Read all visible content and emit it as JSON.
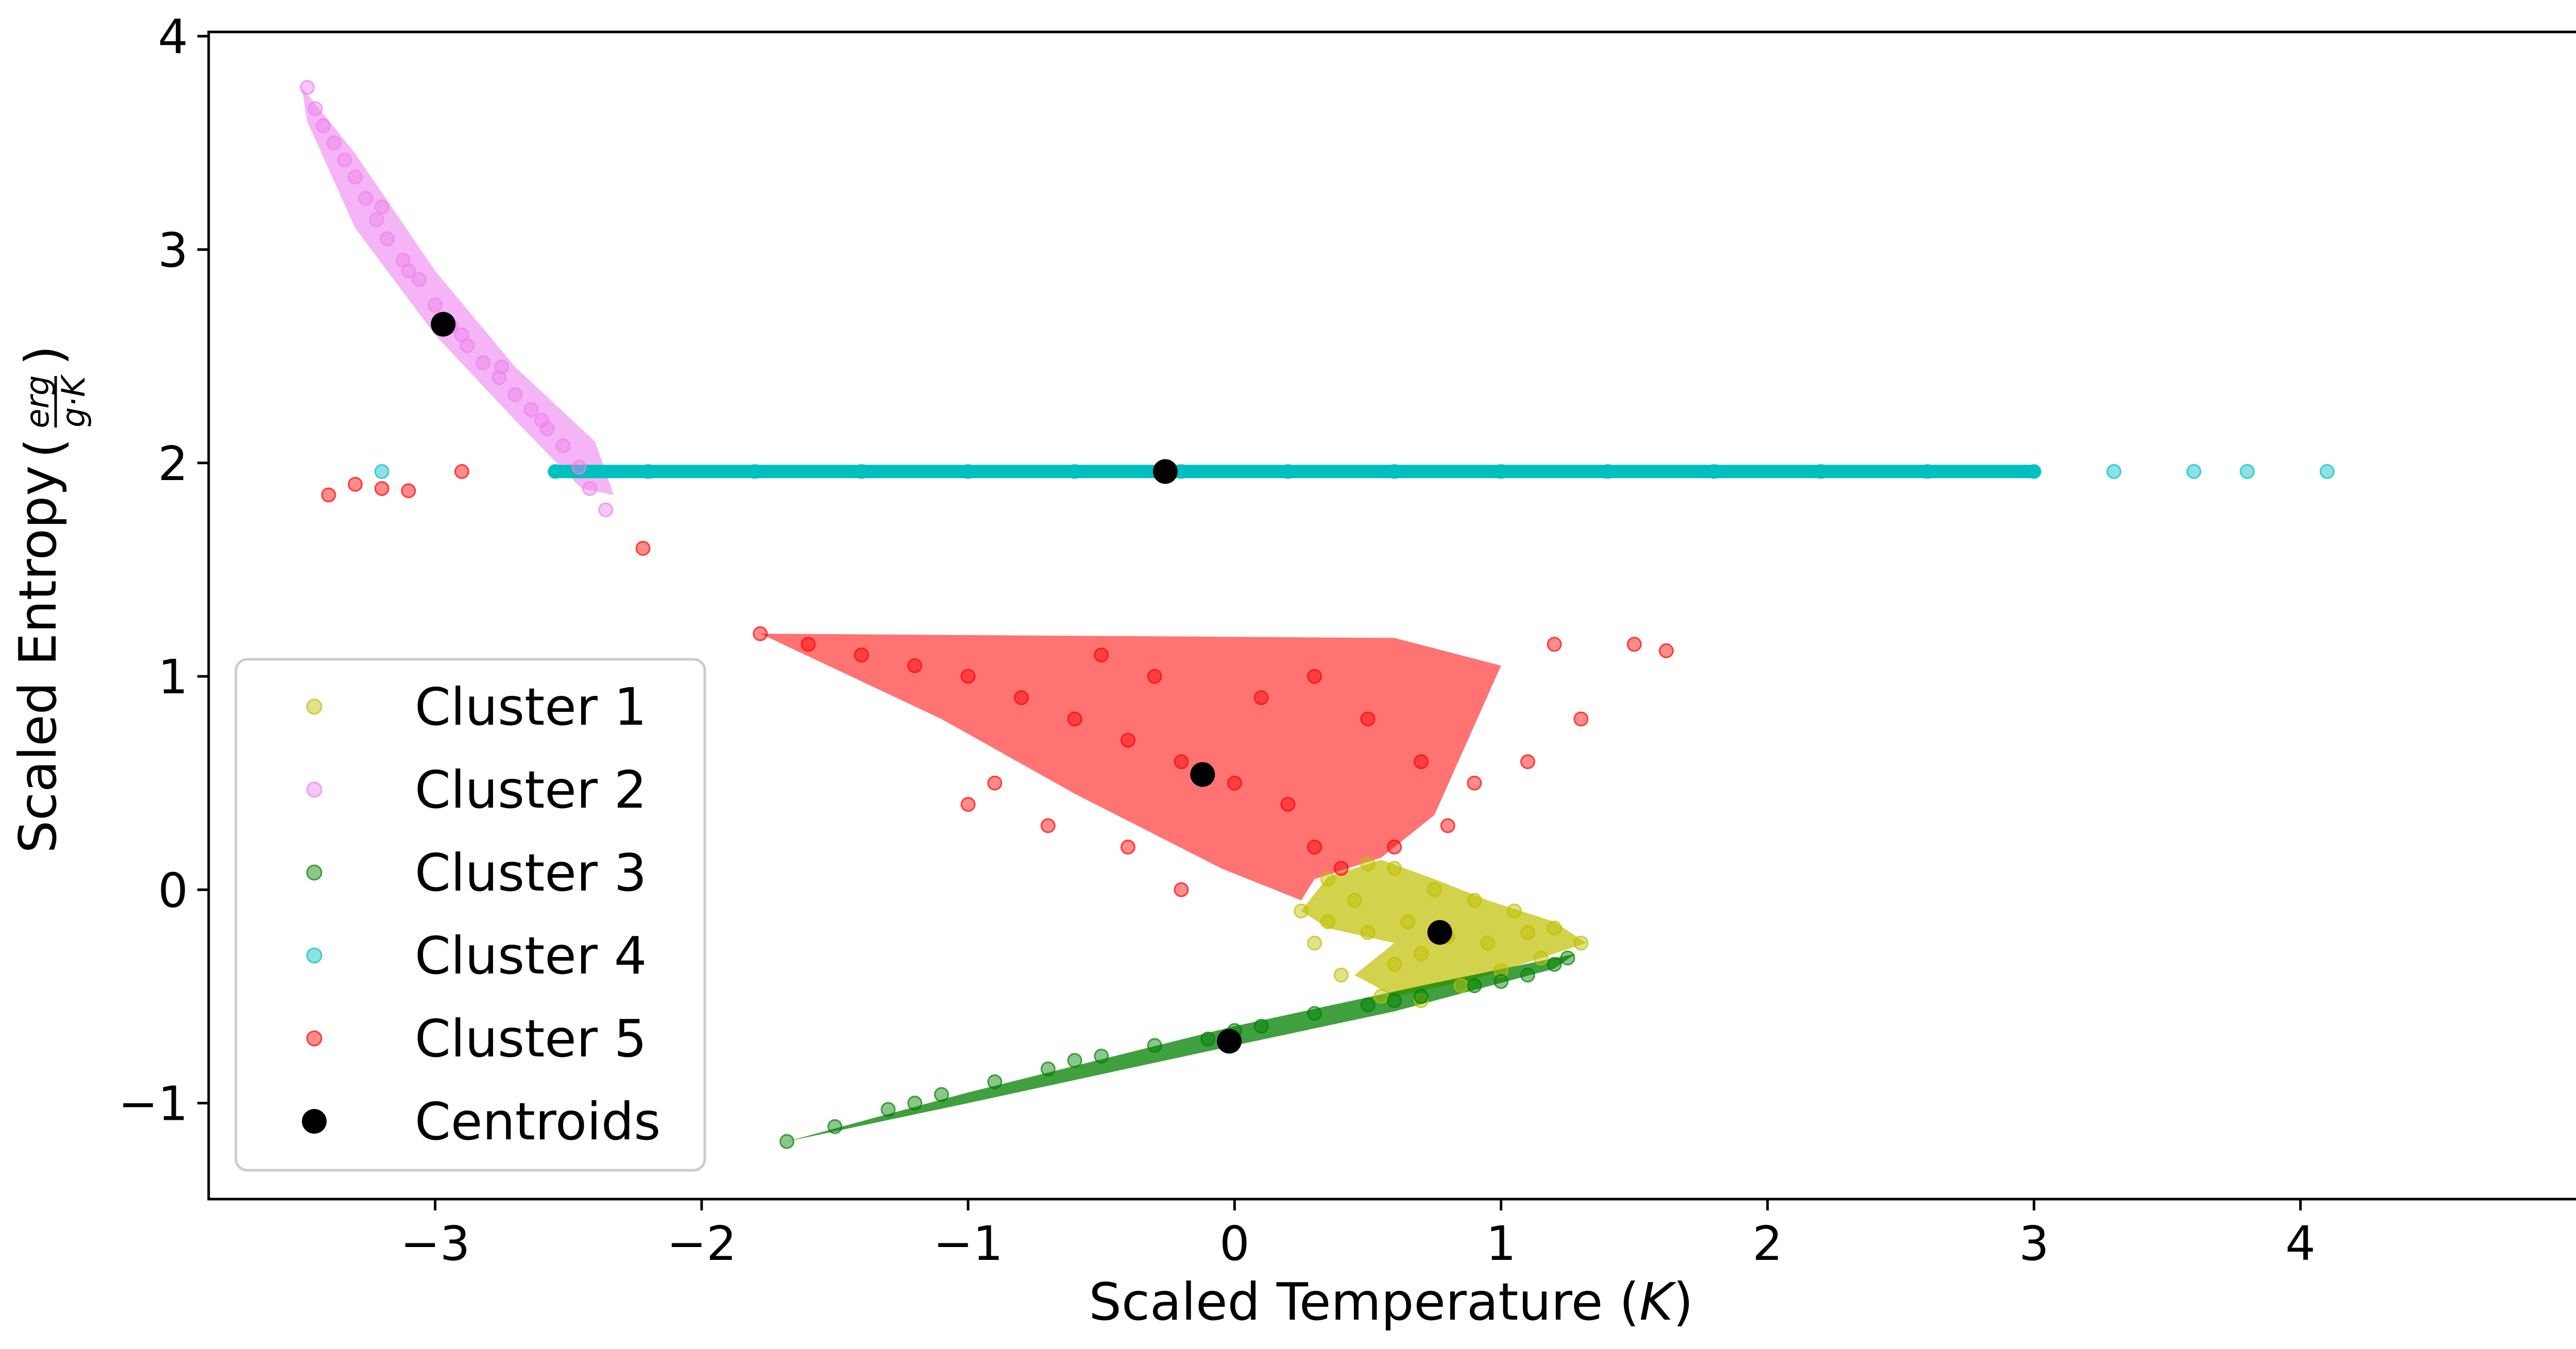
{
  "chart_data": {
    "type": "scatter",
    "title": "",
    "xlabel_prefix": "Scaled Temperature (",
    "xlabel_unit": "K",
    "xlabel_suffix": ")",
    "ylabel_prefix": "Scaled Entropy",
    "ylabel_frac_num": "erg",
    "ylabel_frac_den": "g·K",
    "xlim": [
      -3.85,
      5.15
    ],
    "ylim": [
      -1.45,
      4.02
    ],
    "x_ticks": [
      -3,
      -2,
      -1,
      0,
      1,
      2,
      3,
      4
    ],
    "x_tick_labels": [
      "−3",
      "−2",
      "−1",
      "0",
      "1",
      "2",
      "3",
      "4"
    ],
    "y_ticks": [
      -1,
      0,
      1,
      2,
      3,
      4
    ],
    "y_tick_labels": [
      "−1",
      "0",
      "1",
      "2",
      "3",
      "4"
    ],
    "legend_position": "lower-left",
    "series": [
      {
        "name": "Cluster 1",
        "color": "#bfbf00",
        "shape": "yellow blob between T≈0.25 and T≈1.3, S≈-0.55 to 0.15",
        "points": [
          [
            0.25,
            -0.1
          ],
          [
            0.35,
            0.05
          ],
          [
            0.5,
            0.12
          ],
          [
            0.6,
            0.1
          ],
          [
            0.75,
            0.0
          ],
          [
            0.9,
            -0.05
          ],
          [
            1.05,
            -0.1
          ],
          [
            1.2,
            -0.18
          ],
          [
            1.3,
            -0.25
          ],
          [
            1.15,
            -0.32
          ],
          [
            1.0,
            -0.38
          ],
          [
            0.85,
            -0.45
          ],
          [
            0.7,
            -0.52
          ],
          [
            0.55,
            -0.5
          ],
          [
            0.4,
            -0.4
          ],
          [
            0.3,
            -0.25
          ],
          [
            0.5,
            -0.2
          ],
          [
            0.65,
            -0.15
          ],
          [
            0.8,
            -0.22
          ],
          [
            0.95,
            -0.25
          ],
          [
            0.6,
            -0.35
          ],
          [
            0.45,
            -0.05
          ],
          [
            0.7,
            -0.3
          ],
          [
            1.1,
            -0.2
          ],
          [
            0.35,
            -0.15
          ]
        ]
      },
      {
        "name": "Cluster 2",
        "color": "#ee82ee",
        "points": [
          [
            -3.48,
            3.76
          ],
          [
            -3.45,
            3.66
          ],
          [
            -3.42,
            3.58
          ],
          [
            -3.38,
            3.5
          ],
          [
            -3.34,
            3.42
          ],
          [
            -3.3,
            3.34
          ],
          [
            -3.26,
            3.24
          ],
          [
            -3.22,
            3.14
          ],
          [
            -3.18,
            3.05
          ],
          [
            -3.12,
            2.95
          ],
          [
            -3.06,
            2.86
          ],
          [
            -3.0,
            2.74
          ],
          [
            -2.94,
            2.64
          ],
          [
            -2.88,
            2.55
          ],
          [
            -2.82,
            2.47
          ],
          [
            -2.76,
            2.4
          ],
          [
            -2.7,
            2.32
          ],
          [
            -2.64,
            2.25
          ],
          [
            -2.58,
            2.16
          ],
          [
            -2.52,
            2.08
          ],
          [
            -2.46,
            1.98
          ],
          [
            -2.42,
            1.88
          ],
          [
            -2.36,
            1.78
          ],
          [
            -3.2,
            3.2
          ],
          [
            -3.1,
            2.9
          ],
          [
            -2.9,
            2.6
          ],
          [
            -2.75,
            2.45
          ],
          [
            -2.6,
            2.2
          ]
        ]
      },
      {
        "name": "Cluster 3",
        "color": "#008000",
        "points": [
          [
            -1.68,
            -1.18
          ],
          [
            -1.5,
            -1.11
          ],
          [
            -1.3,
            -1.03
          ],
          [
            -1.1,
            -0.96
          ],
          [
            -0.9,
            -0.9
          ],
          [
            -0.7,
            -0.84
          ],
          [
            -0.5,
            -0.78
          ],
          [
            -0.3,
            -0.73
          ],
          [
            -0.1,
            -0.7
          ],
          [
            0.1,
            -0.64
          ],
          [
            0.3,
            -0.58
          ],
          [
            0.5,
            -0.54
          ],
          [
            0.7,
            -0.5
          ],
          [
            0.9,
            -0.45
          ],
          [
            1.1,
            -0.4
          ],
          [
            1.25,
            -0.32
          ],
          [
            -1.2,
            -1.0
          ],
          [
            -0.6,
            -0.8
          ],
          [
            0.0,
            -0.66
          ],
          [
            0.6,
            -0.52
          ],
          [
            1.0,
            -0.43
          ],
          [
            1.2,
            -0.35
          ]
        ]
      },
      {
        "name": "Cluster 4",
        "color": "#00bfbf",
        "points": [
          [
            -2.55,
            1.96
          ],
          [
            -2.2,
            1.96
          ],
          [
            -1.8,
            1.96
          ],
          [
            -1.4,
            1.96
          ],
          [
            -1.0,
            1.96
          ],
          [
            -0.6,
            1.96
          ],
          [
            -0.2,
            1.96
          ],
          [
            0.2,
            1.96
          ],
          [
            0.6,
            1.96
          ],
          [
            1.0,
            1.96
          ],
          [
            1.4,
            1.96
          ],
          [
            1.8,
            1.96
          ],
          [
            2.2,
            1.96
          ],
          [
            2.6,
            1.96
          ],
          [
            3.0,
            1.96
          ],
          [
            3.3,
            1.96
          ],
          [
            3.6,
            1.96
          ],
          [
            3.8,
            1.96
          ],
          [
            4.1,
            1.96
          ],
          [
            -3.2,
            1.96
          ]
        ]
      },
      {
        "name": "Cluster 5",
        "color": "#ff0000",
        "points": [
          [
            -1.78,
            1.2
          ],
          [
            -1.6,
            1.15
          ],
          [
            -1.4,
            1.1
          ],
          [
            -1.2,
            1.05
          ],
          [
            -1.0,
            1.0
          ],
          [
            -0.8,
            0.9
          ],
          [
            -0.6,
            0.8
          ],
          [
            -0.4,
            0.7
          ],
          [
            -0.2,
            0.6
          ],
          [
            0.0,
            0.5
          ],
          [
            0.2,
            0.4
          ],
          [
            0.3,
            0.2
          ],
          [
            0.4,
            0.1
          ],
          [
            -0.5,
            1.1
          ],
          [
            -0.3,
            1.0
          ],
          [
            0.1,
            0.9
          ],
          [
            0.3,
            1.0
          ],
          [
            0.5,
            0.8
          ],
          [
            0.7,
            0.6
          ],
          [
            0.9,
            0.5
          ],
          [
            1.1,
            0.6
          ],
          [
            1.3,
            0.8
          ],
          [
            1.5,
            1.15
          ],
          [
            1.62,
            1.12
          ],
          [
            1.2,
            1.15
          ],
          [
            0.8,
            0.3
          ],
          [
            0.6,
            0.2
          ],
          [
            -0.9,
            0.5
          ],
          [
            -1.0,
            0.4
          ],
          [
            -0.7,
            0.3
          ],
          [
            -0.4,
            0.2
          ],
          [
            -0.2,
            0.0
          ],
          [
            -3.4,
            1.85
          ],
          [
            -3.3,
            1.9
          ],
          [
            -3.2,
            1.88
          ],
          [
            -3.1,
            1.87
          ],
          [
            -2.9,
            1.96
          ],
          [
            -2.22,
            1.6
          ]
        ]
      },
      {
        "name": "Centroids",
        "color": "#000000",
        "points": [
          [
            0.77,
            -0.2
          ],
          [
            -2.97,
            2.65
          ],
          [
            -0.02,
            -0.71
          ],
          [
            -0.26,
            1.96
          ],
          [
            -0.12,
            0.54
          ]
        ]
      }
    ],
    "legend": [
      "Cluster 1",
      "Cluster 2",
      "Cluster 3",
      "Cluster 4",
      "Cluster 5",
      "Centroids"
    ]
  }
}
